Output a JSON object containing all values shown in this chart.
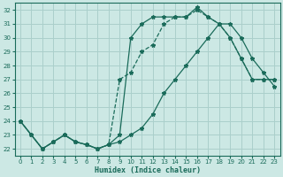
{
  "xlabel": "Humidex (Indice chaleur)",
  "background_color": "#cce8e4",
  "grid_color": "#aacfcb",
  "line_color": "#1a6b5a",
  "xlim": [
    -0.5,
    23.5
  ],
  "ylim": [
    21.5,
    32.5
  ],
  "xticks": [
    0,
    1,
    2,
    3,
    4,
    5,
    6,
    7,
    8,
    9,
    10,
    11,
    12,
    13,
    14,
    15,
    16,
    17,
    18,
    19,
    20,
    21,
    22,
    23
  ],
  "yticks": [
    22,
    23,
    24,
    25,
    26,
    27,
    28,
    29,
    30,
    31,
    32
  ],
  "series1_y": [
    24.0,
    23.0,
    22.0,
    22.5,
    23.0,
    22.5,
    22.3,
    22.0,
    22.3,
    22.5,
    23.0,
    23.5,
    24.5,
    26.0,
    27.0,
    28.0,
    29.0,
    30.0,
    31.0,
    31.0,
    30.0,
    28.5,
    27.5,
    26.5
  ],
  "series2_y": [
    24.0,
    23.0,
    22.0,
    22.5,
    23.0,
    22.5,
    22.3,
    22.0,
    22.3,
    27.0,
    27.5,
    29.0,
    29.5,
    31.0,
    31.5,
    31.5,
    32.0,
    31.5,
    31.0,
    30.0,
    28.5,
    27.0,
    27.0,
    27.0
  ],
  "series3_y": [
    24.0,
    23.0,
    22.0,
    22.5,
    23.0,
    22.5,
    22.3,
    22.0,
    22.3,
    23.0,
    30.0,
    31.0,
    31.5,
    31.5,
    31.5,
    31.5,
    32.2,
    31.5,
    31.0,
    30.0,
    28.5,
    27.0,
    27.0,
    27.0
  ]
}
